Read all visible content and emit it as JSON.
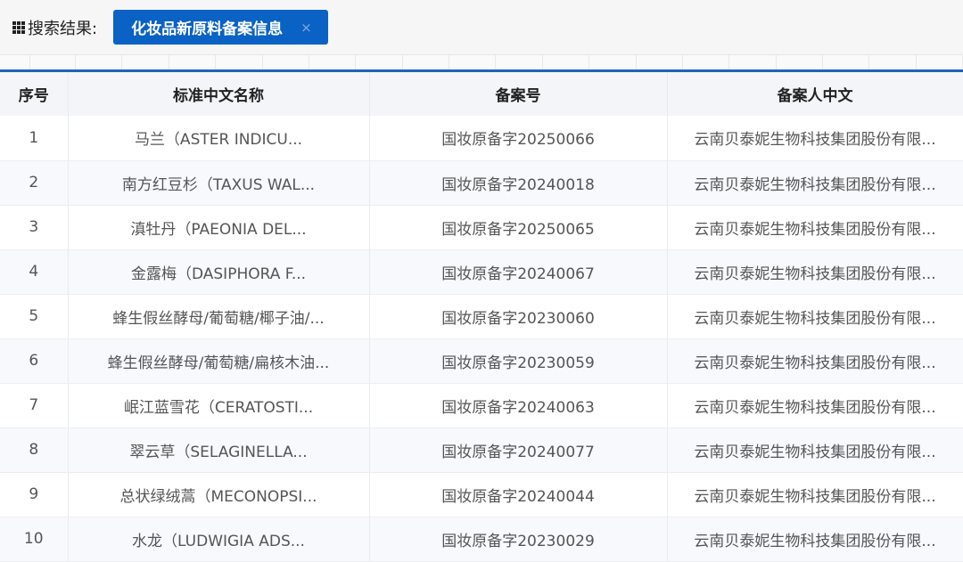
{
  "search": {
    "label": "搜索结果:",
    "tag": "化妆品新原料备案信息",
    "close": "×"
  },
  "colors": {
    "accent": "#0a62c4"
  },
  "table": {
    "headers": [
      "序号",
      "标准中文名称",
      "备案号",
      "备案人中文"
    ],
    "rows": [
      [
        "1",
        "马兰（ASTER INDICU...",
        "国妆原备字20250066",
        "云南贝泰妮生物科技集团股份有限..."
      ],
      [
        "2",
        "南方红豆杉（TAXUS WAL...",
        "国妆原备字20240018",
        "云南贝泰妮生物科技集团股份有限..."
      ],
      [
        "3",
        "滇牡丹（PAEONIA DEL...",
        "国妆原备字20250065",
        "云南贝泰妮生物科技集团股份有限..."
      ],
      [
        "4",
        "金露梅（DASIPHORA F...",
        "国妆原备字20240067",
        "云南贝泰妮生物科技集团股份有限..."
      ],
      [
        "5",
        "蜂生假丝酵母/葡萄糖/椰子油/...",
        "国妆原备字20230060",
        "云南贝泰妮生物科技集团股份有限..."
      ],
      [
        "6",
        "蜂生假丝酵母/葡萄糖/扁核木油...",
        "国妆原备字20230059",
        "云南贝泰妮生物科技集团股份有限..."
      ],
      [
        "7",
        "岷江蓝雪花（CERATOSTI...",
        "国妆原备字20240063",
        "云南贝泰妮生物科技集团股份有限..."
      ],
      [
        "8",
        "翠云草（SELAGINELLA...",
        "国妆原备字20240077",
        "云南贝泰妮生物科技集团股份有限..."
      ],
      [
        "9",
        "总状绿绒蒿（MECONOPSI...",
        "国妆原备字20240044",
        "云南贝泰妮生物科技集团股份有限..."
      ],
      [
        "10",
        "水龙（LUDWIGIA ADS...",
        "国妆原备字20230029",
        "云南贝泰妮生物科技集团股份有限..."
      ]
    ]
  }
}
